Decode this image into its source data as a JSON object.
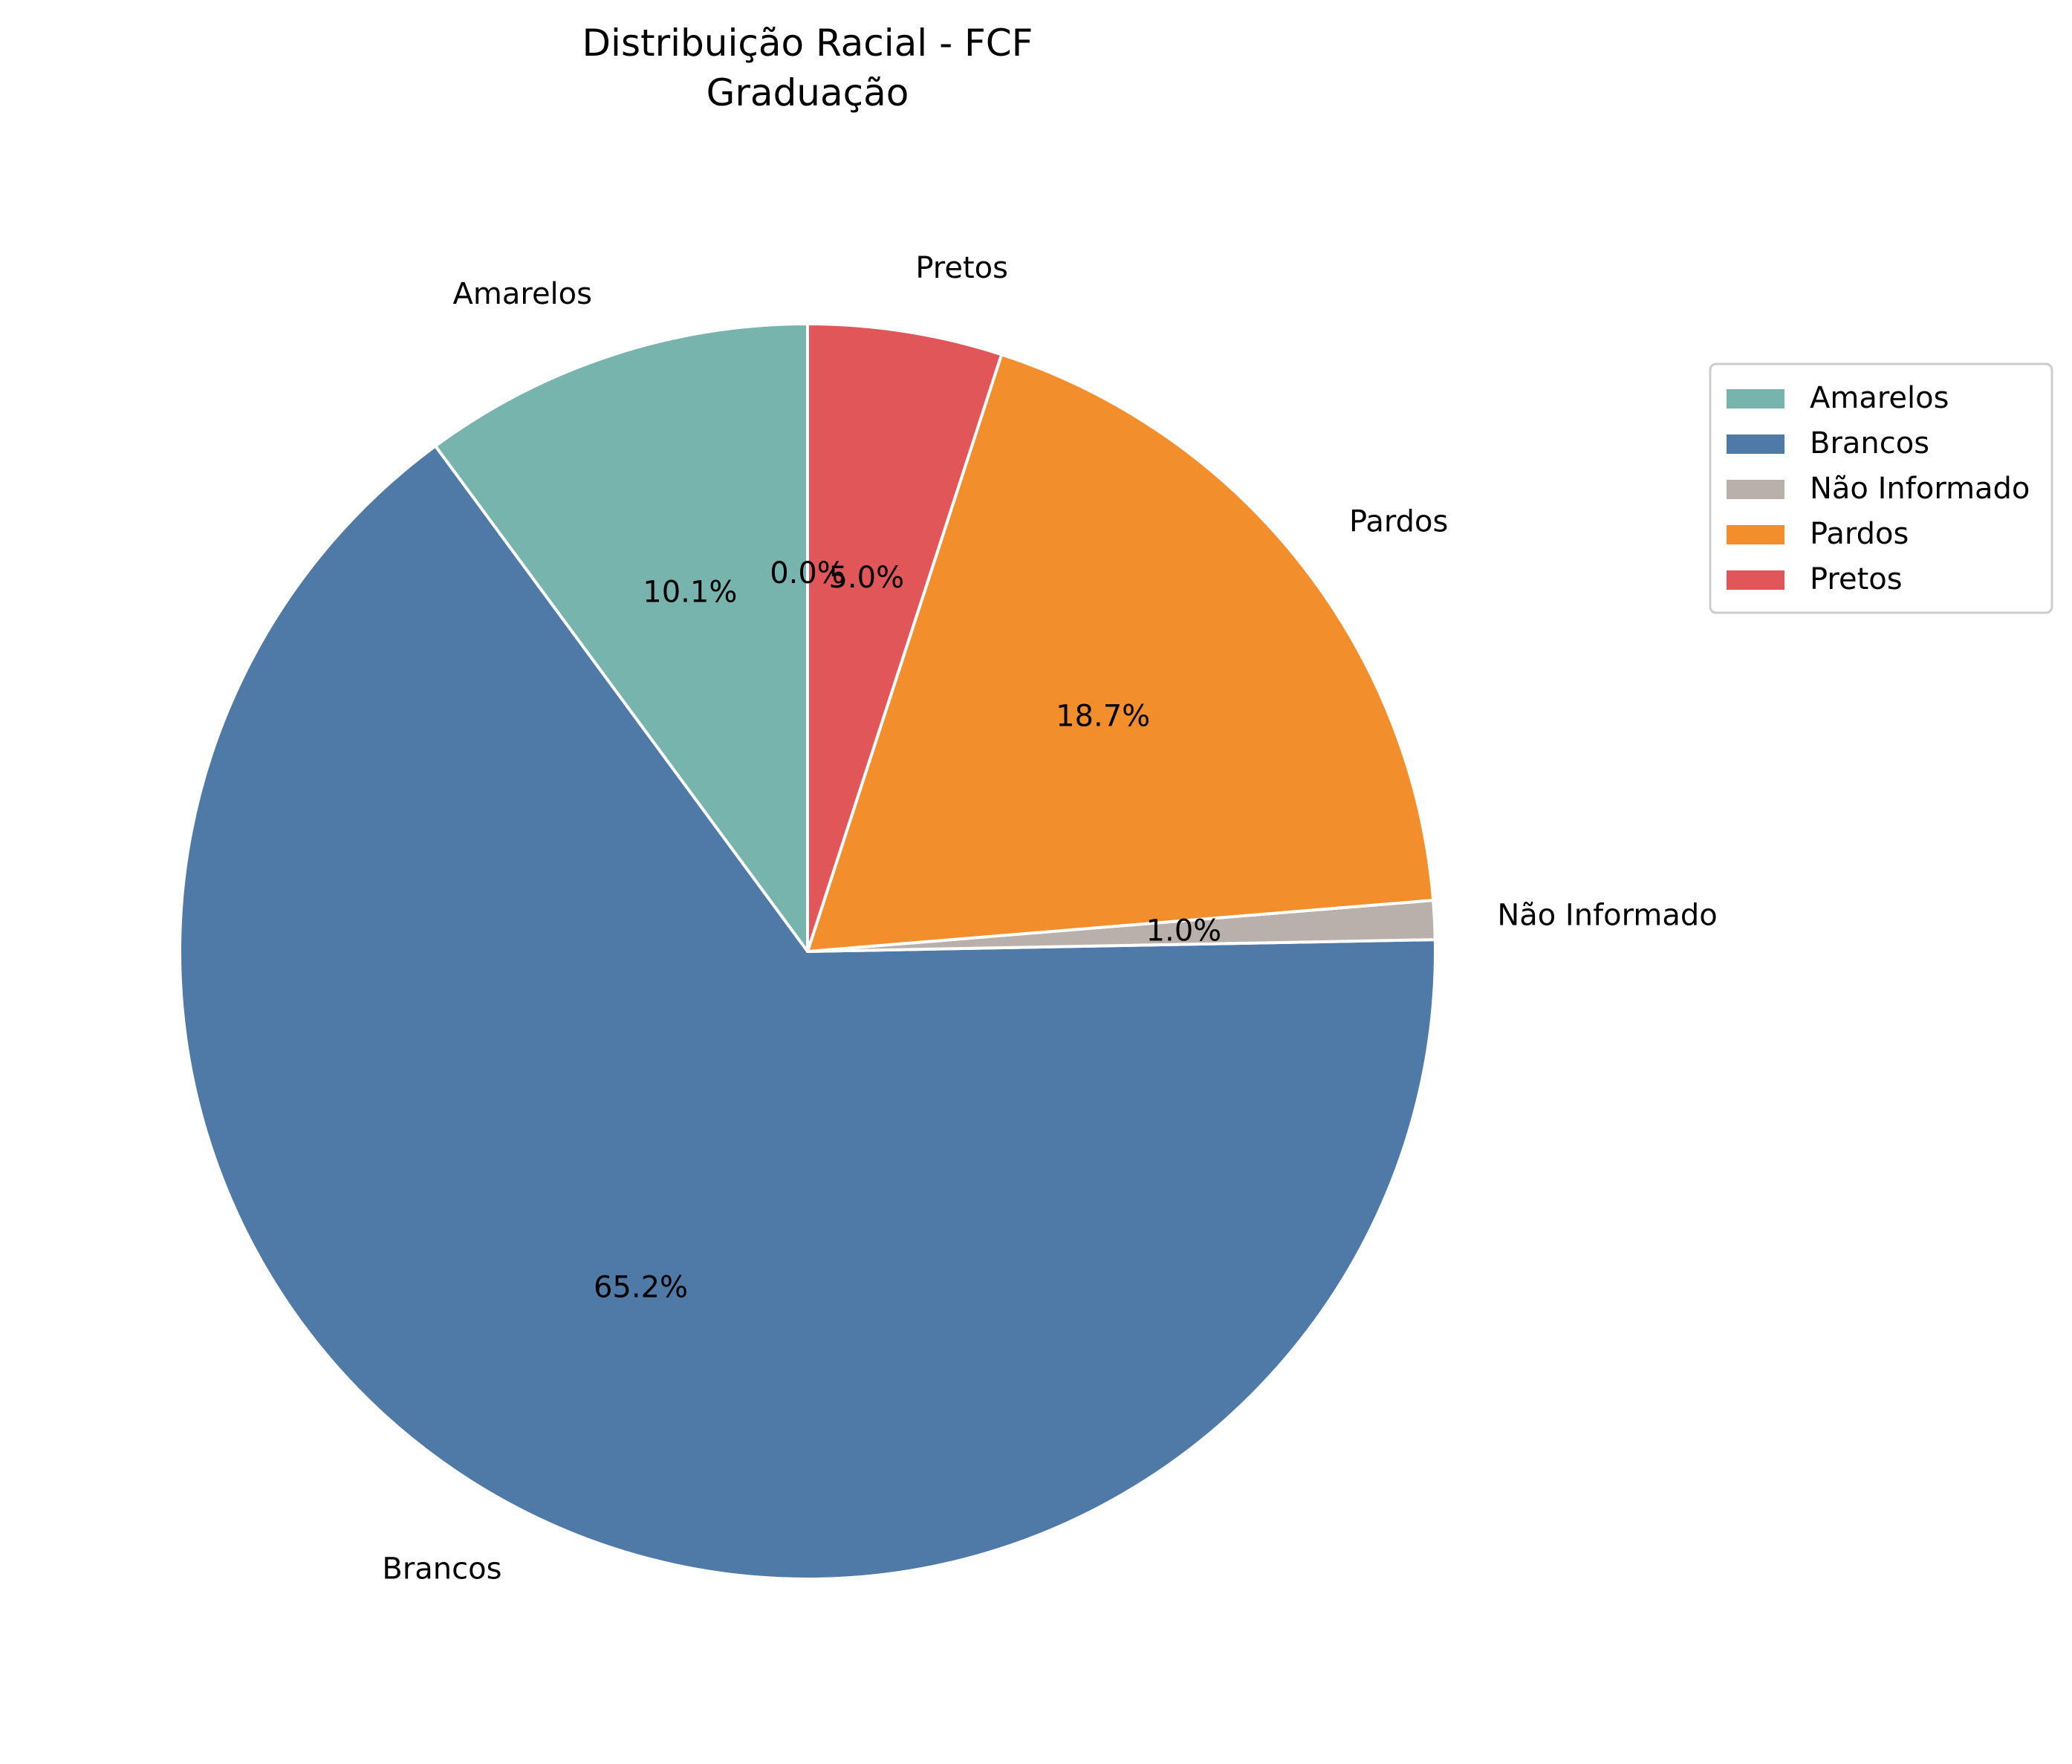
{
  "chart_data": {
    "type": "pie",
    "title": "Distribuição Racial - FCF",
    "subtitle": "Graduação",
    "categories": [
      "Amarelos",
      "Brancos",
      "Não Informado",
      "Pardos",
      "Pretos",
      ""
    ],
    "values": [
      10.1,
      65.2,
      1.0,
      18.7,
      5.0,
      0.0
    ],
    "value_labels": [
      "10.1%",
      "65.2%",
      "1.0%",
      "18.7%",
      "5.0%",
      "0.0%"
    ],
    "colors": [
      "#78b4ae",
      "#4f79a6",
      "#bab0ab",
      "#f28e2c",
      "#e15759",
      "#76b7b2"
    ],
    "legend": {
      "placement": "right",
      "entries": [
        "Amarelos",
        "Brancos",
        "Não Informado",
        "Pardos",
        "Pretos"
      ]
    },
    "start_angle_deg": 90,
    "direction": "counterclockwise"
  }
}
